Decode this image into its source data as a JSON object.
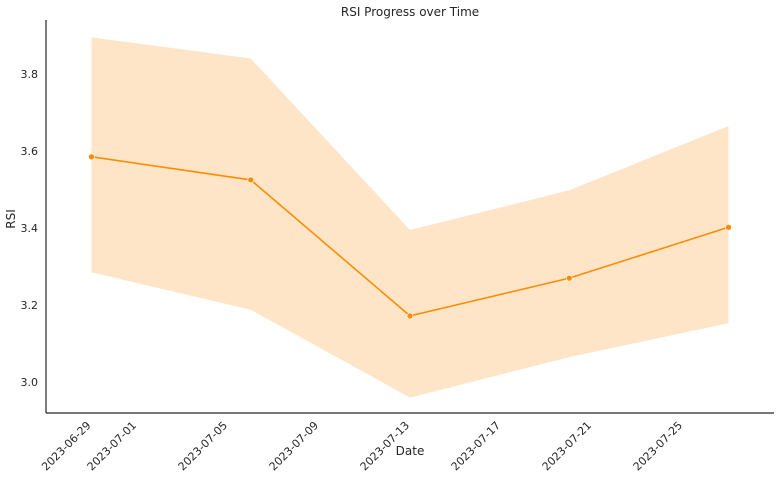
{
  "chart_data": {
    "type": "line",
    "title": "RSI Progress over Time",
    "xlabel": "Date",
    "ylabel": "RSI",
    "x": [
      "2023-06-29",
      "2023-07-06",
      "2023-07-13",
      "2023-07-20",
      "2023-07-27"
    ],
    "series": [
      {
        "values": [
          3.585,
          3.525,
          3.172,
          3.27,
          3.402
        ],
        "band_low": [
          3.285,
          3.188,
          2.96,
          3.065,
          3.153
        ],
        "band_high": [
          3.895,
          3.84,
          3.395,
          3.498,
          3.665
        ],
        "color": "#ff8c00",
        "band_color": "#ffe5c8"
      }
    ],
    "x_ticks": [
      "2023-06-29",
      "2023-07-01",
      "2023-07-05",
      "2023-07-09",
      "2023-07-13",
      "2023-07-17",
      "2023-07-21",
      "2023-07-25"
    ],
    "y_ticks": [
      "3.0",
      "3.2",
      "3.4",
      "3.6",
      "3.8"
    ],
    "ylim": [
      2.92,
      3.94
    ],
    "xlim": [
      "2023-06-27",
      "2023-07-29"
    ],
    "grid": false
  }
}
